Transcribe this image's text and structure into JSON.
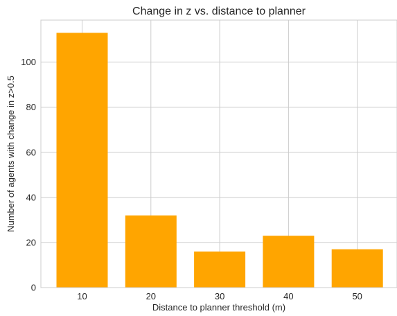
{
  "chart_data": {
    "type": "bar",
    "title": "Change in z vs. distance to planner",
    "xlabel": "Distance to planner threshold (m)",
    "ylabel": "Number of agents with change in z>0.5",
    "categories": [
      "10",
      "20",
      "30",
      "40",
      "50"
    ],
    "values": [
      113,
      32,
      16,
      23,
      17
    ],
    "ylim": [
      0,
      118.65
    ],
    "yticks": [
      0,
      20,
      40,
      60,
      80,
      100
    ],
    "bar_color": "#ffa500",
    "grid": true
  }
}
